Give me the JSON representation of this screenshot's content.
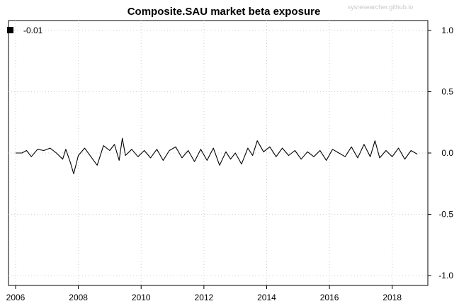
{
  "chart_data": {
    "type": "line",
    "title": "Composite.SAU market beta exposure",
    "watermark": "sysresearcher.github.io",
    "xlabel": "",
    "ylabel": "",
    "xlim": [
      2006,
      2019.36
    ],
    "ylim": [
      -1.0,
      1.0
    ],
    "x_ticks": [
      "2006",
      "2008",
      "2010",
      "2012",
      "2014",
      "2016",
      "2018"
    ],
    "y_ticks": [
      "1.0",
      "0.5",
      "0.0",
      "-0.5",
      "-1.0"
    ],
    "y_axis_side": "right",
    "grid": "dotted",
    "legend": {
      "position": "top-left",
      "entries": [
        {
          "label": "-0.01",
          "color": "#000000"
        }
      ]
    },
    "series": [
      {
        "color": "#000000",
        "x": [
          2006.0,
          2006.2,
          2006.35,
          2006.5,
          2006.7,
          2006.9,
          2007.1,
          2007.3,
          2007.5,
          2007.6,
          2007.75,
          2007.85,
          2008.0,
          2008.2,
          2008.4,
          2008.6,
          2008.8,
          2009.0,
          2009.15,
          2009.3,
          2009.4,
          2009.5,
          2009.7,
          2009.9,
          2010.1,
          2010.3,
          2010.5,
          2010.7,
          2010.9,
          2011.1,
          2011.3,
          2011.5,
          2011.7,
          2011.9,
          2012.1,
          2012.3,
          2012.5,
          2012.7,
          2012.85,
          2013.0,
          2013.2,
          2013.4,
          2013.55,
          2013.7,
          2013.9,
          2014.1,
          2014.3,
          2014.5,
          2014.7,
          2014.9,
          2015.1,
          2015.3,
          2015.5,
          2015.7,
          2015.9,
          2016.1,
          2016.3,
          2016.5,
          2016.7,
          2016.9,
          2017.1,
          2017.3,
          2017.45,
          2017.6,
          2017.8,
          2018.0,
          2018.2,
          2018.4,
          2018.6,
          2018.8
        ],
        "y": [
          0.0,
          0.0,
          0.02,
          -0.03,
          0.03,
          0.02,
          0.04,
          0.0,
          -0.05,
          0.03,
          -0.08,
          -0.17,
          -0.02,
          0.04,
          -0.03,
          -0.1,
          0.06,
          0.02,
          0.07,
          -0.06,
          0.12,
          -0.02,
          0.03,
          -0.03,
          0.02,
          -0.04,
          0.03,
          -0.06,
          0.02,
          0.05,
          -0.04,
          0.02,
          -0.07,
          0.03,
          -0.06,
          0.04,
          -0.1,
          0.01,
          -0.05,
          0.0,
          -0.09,
          0.04,
          -0.02,
          0.1,
          0.01,
          0.05,
          -0.03,
          0.04,
          -0.02,
          0.02,
          -0.05,
          0.01,
          -0.03,
          0.02,
          -0.06,
          0.03,
          0.0,
          -0.03,
          0.05,
          -0.04,
          0.07,
          -0.03,
          0.1,
          -0.04,
          0.02,
          -0.03,
          0.04,
          -0.05,
          0.02,
          -0.01
        ]
      }
    ]
  }
}
